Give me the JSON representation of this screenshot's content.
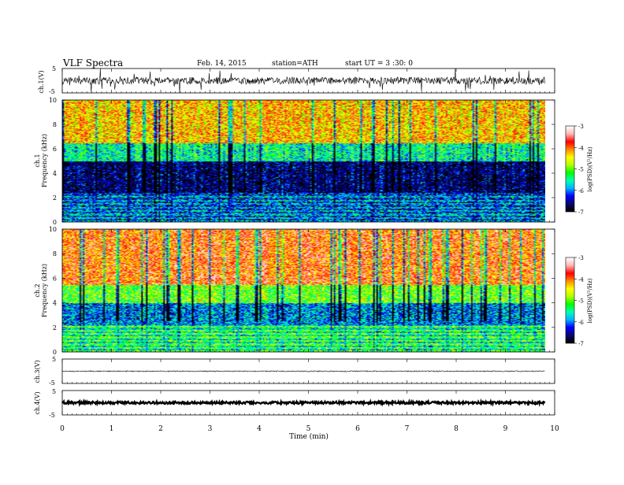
{
  "header": {
    "title": "VLF Spectra",
    "date": "Feb. 14, 2015",
    "station": "station=ATH",
    "start": "start UT = 3 :30: 0"
  },
  "chart_data": [
    {
      "id": "ch1-waveform",
      "type": "line",
      "ylabel": "ch.1(V)",
      "yticks": [
        "5",
        "-5"
      ],
      "ylim": [
        -5,
        5
      ],
      "description_values": {
        "baseline_v": 0,
        "noise_amplitude_v": 1.5,
        "spike_amplitude_v": 4.5
      }
    },
    {
      "id": "ch1-spectrogram",
      "type": "heatmap",
      "ylabel_top": "ch.1",
      "ylabel": "Frequency (kHz)",
      "yticks": [
        "0",
        "2",
        "4",
        "6",
        "8",
        "10"
      ],
      "ylim": [
        0,
        10
      ],
      "bands_khz": [
        {
          "range": [
            0,
            2.4
          ],
          "level": -6.3
        },
        {
          "range": [
            2.4,
            5.0
          ],
          "level": -6.7
        },
        {
          "range": [
            5.0,
            6.5
          ],
          "level": -5.5
        },
        {
          "range": [
            6.5,
            10
          ],
          "level": -4.3
        }
      ],
      "colorbar": {
        "label": "log(PSD)(V²/Hz)",
        "ticks": [
          "-3",
          "-4",
          "-5",
          "-6",
          "-7"
        ],
        "range": [
          -7,
          -3
        ]
      }
    },
    {
      "id": "ch2-spectrogram",
      "type": "heatmap",
      "ylabel_top": "ch.2",
      "ylabel": "Frequency (kHz)",
      "yticks": [
        "0",
        "2",
        "4",
        "6",
        "8",
        "10"
      ],
      "ylim": [
        0,
        10
      ],
      "bands_khz": [
        {
          "range": [
            0,
            2.2
          ],
          "level": -5.6
        },
        {
          "range": [
            2.2,
            4.0
          ],
          "level": -6.0
        },
        {
          "range": [
            4.0,
            5.5
          ],
          "level": -5.0
        },
        {
          "range": [
            5.5,
            10
          ],
          "level": -3.9
        }
      ],
      "colorbar": {
        "label": "log(PSD)(V²/Hz)",
        "ticks": [
          "-3",
          "-4",
          "-5",
          "-6",
          "-7"
        ],
        "range": [
          -7,
          -3
        ]
      }
    },
    {
      "id": "ch3-waveform",
      "type": "line",
      "ylabel": "ch.3(V)",
      "yticks": [
        "5",
        "-5"
      ],
      "ylim": [
        -5,
        5
      ],
      "description_values": {
        "baseline_v": 0,
        "noise_amplitude_v": 0.2
      }
    },
    {
      "id": "ch4-waveform",
      "type": "line",
      "ylabel": "ch.4(V)",
      "yticks": [
        "5",
        "-5"
      ],
      "ylim": [
        -5,
        5
      ],
      "description_values": {
        "baseline_v": 0,
        "noise_amplitude_v": 0.5
      }
    }
  ],
  "xaxis": {
    "label": "Time (min)",
    "ticks": [
      "0",
      "1",
      "2",
      "3",
      "4",
      "5",
      "6",
      "7",
      "8",
      "9",
      "10"
    ],
    "xlim": [
      0,
      10
    ],
    "data_end_min": 9.8
  },
  "colors": {
    "colormap": [
      "#000000",
      "#0a0a6e",
      "#0000ff",
      "#00b4ff",
      "#00ffb4",
      "#00ff00",
      "#b4ff00",
      "#ffff00",
      "#ff8c00",
      "#ff0000",
      "#ffb4b4",
      "#ffffff"
    ],
    "trace": "#000000"
  }
}
